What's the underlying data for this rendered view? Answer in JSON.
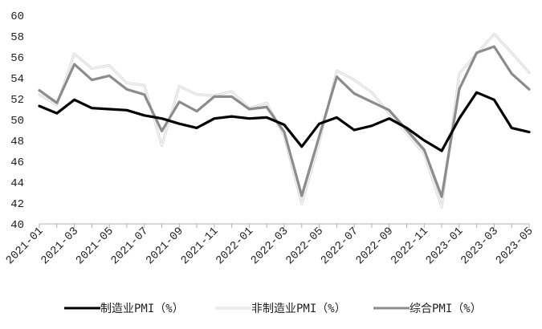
{
  "chart_data": {
    "type": "line",
    "title": "",
    "xlabel": "",
    "ylabel": "",
    "ylim": [
      40,
      60
    ],
    "yticks": [
      40,
      42,
      44,
      46,
      48,
      50,
      52,
      54,
      56,
      58,
      60
    ],
    "grid": false,
    "legend_position": "bottom",
    "x": [
      "2021-01",
      "2021-02",
      "2021-03",
      "2021-04",
      "2021-05",
      "2021-06",
      "2021-07",
      "2021-08",
      "2021-09",
      "2021-10",
      "2021-11",
      "2021-12",
      "2022-01",
      "2022-02",
      "2022-03",
      "2022-04",
      "2022-05",
      "2022-06",
      "2022-07",
      "2022-08",
      "2022-09",
      "2022-10",
      "2022-11",
      "2022-12",
      "2023-01",
      "2023-02",
      "2023-03",
      "2023-04",
      "2023-05"
    ],
    "xtick_labels": [
      "2021-01",
      "2021-03",
      "2021-05",
      "2021-07",
      "2021-09",
      "2021-11",
      "2022-01",
      "2022-03",
      "2022-05",
      "2022-07",
      "2022-09",
      "2022-11",
      "2023-01",
      "2023-03",
      "2023-05"
    ],
    "series": [
      {
        "name": "制造业PMI（%）",
        "color": "#000000",
        "values": [
          51.3,
          50.6,
          51.9,
          51.1,
          51.0,
          50.9,
          50.4,
          50.1,
          49.6,
          49.2,
          50.1,
          50.3,
          50.1,
          50.2,
          49.5,
          47.4,
          49.6,
          50.2,
          49.0,
          49.4,
          50.1,
          49.2,
          48.0,
          47.0,
          50.1,
          52.6,
          51.9,
          49.2,
          48.8
        ]
      },
      {
        "name": "非制造业PMI（%）",
        "color": "#d9d9d9",
        "values": [
          52.4,
          51.4,
          56.3,
          54.9,
          55.2,
          53.5,
          53.3,
          47.5,
          53.2,
          52.4,
          52.3,
          52.7,
          51.1,
          51.6,
          48.4,
          41.9,
          47.8,
          54.7,
          53.8,
          52.6,
          50.6,
          48.7,
          46.7,
          41.6,
          54.4,
          56.3,
          58.2,
          56.4,
          54.5
        ]
      },
      {
        "name": "综合PMI（%）",
        "color": "#8c8c8c",
        "values": [
          52.8,
          51.6,
          55.3,
          53.8,
          54.2,
          52.9,
          52.4,
          48.9,
          51.7,
          50.8,
          52.2,
          52.2,
          51.0,
          51.2,
          48.8,
          42.7,
          48.4,
          54.1,
          52.5,
          51.7,
          50.9,
          49.0,
          47.1,
          42.6,
          52.9,
          56.4,
          57.0,
          54.4,
          52.9
        ]
      }
    ]
  }
}
